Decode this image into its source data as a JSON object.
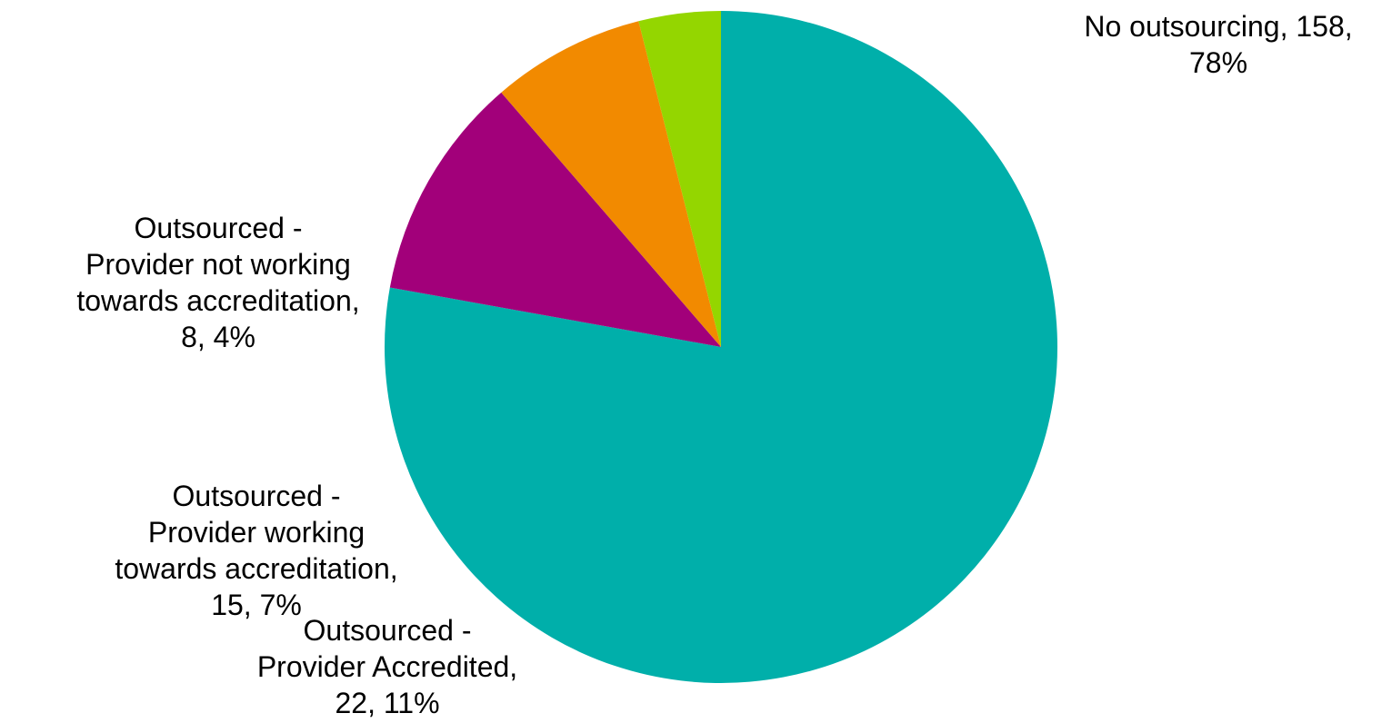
{
  "chart_data": {
    "type": "pie",
    "title": "",
    "start_angle_deg": 270,
    "direction": "clockwise",
    "slices": [
      {
        "name": "No outsourcing",
        "value": 158,
        "percent": 78,
        "color": "#00AFAA",
        "label_lines": [
          "No outsourcing, 158,",
          "78%"
        ]
      },
      {
        "name": "Outsourced - Provider Accredited",
        "value": 22,
        "percent": 11,
        "color": "#A2007A",
        "label_lines": [
          "Outsourced -",
          "Provider Accredited,",
          "22, 11%"
        ]
      },
      {
        "name": "Outsourced - Provider working towards accreditation",
        "value": 15,
        "percent": 7,
        "color": "#F28A00",
        "label_lines": [
          "Outsourced -",
          "Provider working",
          "towards accreditation,",
          "15, 7%"
        ]
      },
      {
        "name": "Outsourced - Provider not working towards accreditation",
        "value": 8,
        "percent": 4,
        "color": "#94D600",
        "label_lines": [
          "Outsourced -",
          "Provider not working",
          "towards accreditation,",
          "8, 4%"
        ]
      }
    ]
  }
}
